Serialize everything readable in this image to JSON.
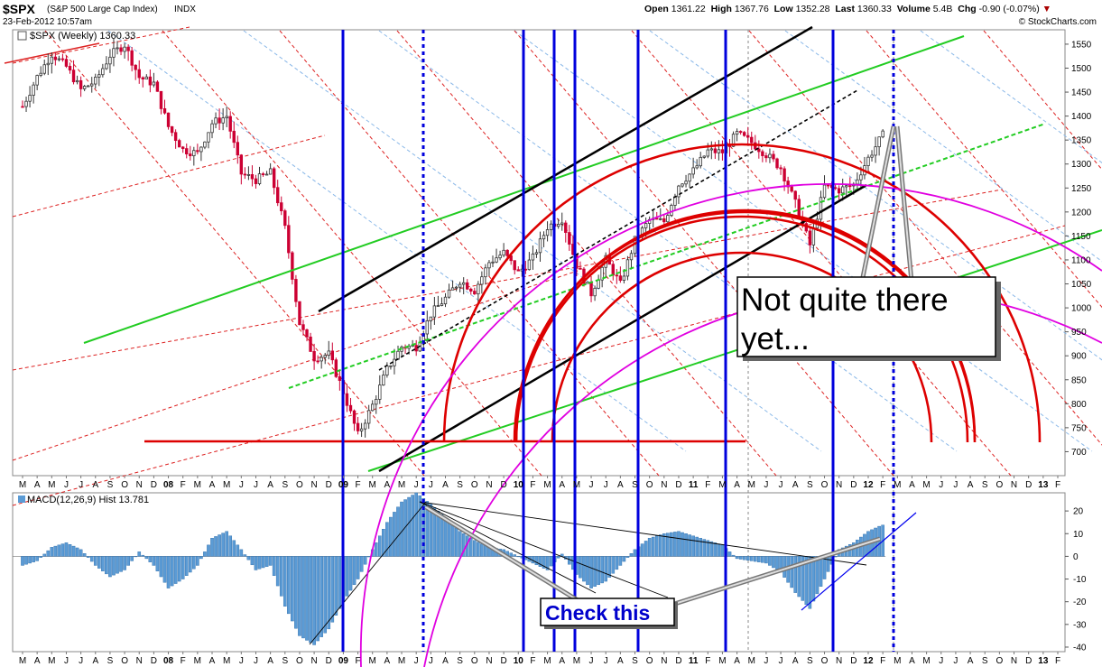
{
  "header": {
    "symbol": "$SPX",
    "name": "(S&P 500 Large Cap Index)",
    "exchange": "INDX",
    "date": "23-Feb-2012 10:57am",
    "watermark": "© StockCharts.com",
    "open_label": "Open",
    "open": "1361.22",
    "high_label": "High",
    "high": "1367.76",
    "low_label": "Low",
    "low": "1352.28",
    "last_label": "Last",
    "last": "1360.33",
    "volume_label": "Volume",
    "volume": "5.4B",
    "chg_label": "Chg",
    "chg": "-0.90 (-0.07%)"
  },
  "price_legend": "$SPX (Weekly) 1360.33",
  "macd_legend": "MACD(12,26,9) Hist 13.781",
  "annotations": {
    "note1_line1": "Not quite there",
    "note1_line2": "yet...",
    "note2": "Check this"
  },
  "colors": {
    "up": "#333333",
    "down": "#cc0033",
    "hist": "#5b9bd5",
    "cycle_line": "#0000dd",
    "arc_red": "#dd0000",
    "arc_magenta": "#e000e0",
    "green": "#22cc22",
    "channel": "#000000"
  },
  "chart_data": [
    {
      "type": "candlestick",
      "title": "$SPX (Weekly) 1360.33",
      "x_start": "2007-03",
      "x_end": "2013-02",
      "ylim": [
        650,
        1580
      ],
      "y_ticks": [
        700,
        750,
        800,
        850,
        900,
        950,
        1000,
        1050,
        1100,
        1150,
        1200,
        1250,
        1300,
        1350,
        1400,
        1450,
        1500,
        1550
      ],
      "month_ticks": [
        "M",
        "A",
        "M",
        "J",
        "J",
        "A",
        "S",
        "O",
        "N",
        "D",
        "08",
        "F",
        "M",
        "A",
        "M",
        "J",
        "J",
        "A",
        "S",
        "O",
        "N",
        "D",
        "09",
        "F",
        "M",
        "A",
        "M",
        "J",
        "J",
        "A",
        "S",
        "O",
        "N",
        "D",
        "10",
        "F",
        "M",
        "A",
        "M",
        "J",
        "J",
        "A",
        "S",
        "O",
        "N",
        "D",
        "11",
        "F",
        "M",
        "A",
        "M",
        "J",
        "J",
        "A",
        "S",
        "O",
        "N",
        "D",
        "12",
        "F",
        "M",
        "A",
        "M",
        "J",
        "J",
        "A",
        "S",
        "O",
        "N",
        "D",
        "13",
        "F"
      ],
      "year_labels": [
        "08",
        "09",
        "10",
        "11",
        "12",
        "13"
      ],
      "monthly_close": [
        1420,
        1482,
        1530,
        1503,
        1455,
        1473,
        1527,
        1549,
        1481,
        1468,
        1378,
        1330,
        1322,
        1385,
        1400,
        1280,
        1267,
        1282,
        1166,
        968,
        896,
        903,
        825,
        735,
        797,
        872,
        919,
        919,
        987,
        1020,
        1057,
        1036,
        1095,
        1115,
        1073,
        1104,
        1169,
        1186,
        1089,
        1030,
        1101,
        1049,
        1141,
        1183,
        1180,
        1257,
        1286,
        1327,
        1325,
        1363,
        1345,
        1320,
        1292,
        1218,
        1131,
        1253,
        1246,
        1257,
        1312,
        1361
      ],
      "last": 1360.33
    },
    {
      "type": "bar",
      "title": "MACD(12,26,9) Hist 13.781",
      "ylim": [
        -42,
        28
      ],
      "y_ticks": [
        -40,
        -30,
        -20,
        -10,
        0,
        10,
        20
      ],
      "monthly_hist": [
        -4,
        -2,
        4,
        6,
        3,
        -4,
        -9,
        -6,
        2,
        -4,
        -14,
        -10,
        -4,
        8,
        11,
        3,
        -6,
        -4,
        -22,
        -35,
        -39,
        -32,
        -20,
        -10,
        3,
        15,
        24,
        28,
        23,
        17,
        11,
        7,
        4,
        3,
        0,
        -3,
        -6,
        1,
        -8,
        -14,
        -11,
        -4,
        3,
        8,
        10,
        11,
        9,
        7,
        5,
        -1,
        -2,
        -3,
        -7,
        -16,
        -23,
        -10,
        3,
        6,
        11,
        14
      ],
      "last": 13.781
    }
  ]
}
